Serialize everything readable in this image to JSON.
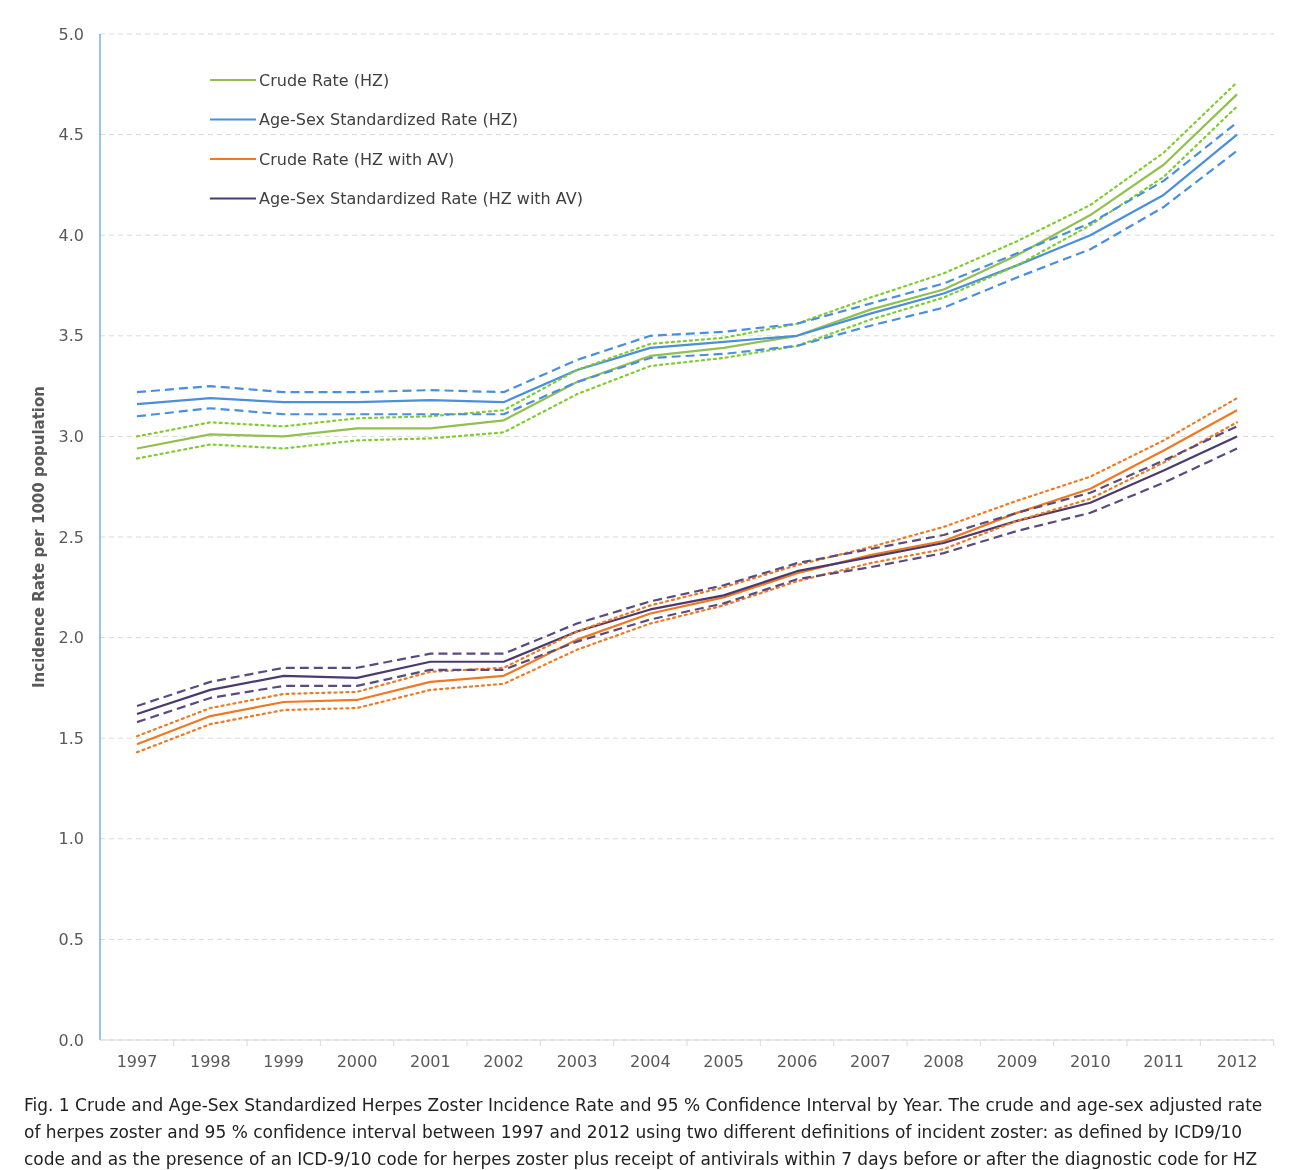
{
  "chart_data": {
    "type": "line",
    "ylabel": "Incidence Rate per 1000 population",
    "categories": [
      "1997",
      "1998",
      "1999",
      "2000",
      "2001",
      "2002",
      "2003",
      "2004",
      "2005",
      "2006",
      "2007",
      "2008",
      "2009",
      "2010",
      "2011",
      "2012"
    ],
    "ylim": [
      0,
      5
    ],
    "yticks": [
      {
        "value": 0,
        "label": "0.0"
      },
      {
        "value": 0.5,
        "label": "0.5"
      },
      {
        "value": 1,
        "label": "1.0"
      },
      {
        "value": 1.5,
        "label": "1.5"
      },
      {
        "value": 2,
        "label": "2.0"
      },
      {
        "value": 2.5,
        "label": "2.5"
      },
      {
        "value": 3,
        "label": "3.0"
      },
      {
        "value": 3.5,
        "label": "3.5"
      },
      {
        "value": 4,
        "label": "4.0"
      },
      {
        "value": 4.5,
        "label": "4.5"
      },
      {
        "value": 5,
        "label": "5.0"
      }
    ],
    "grid": "y",
    "legend": "top left",
    "series": [
      {
        "name": "Crude Rate (HZ)",
        "color": "#92c050",
        "line_style": "solid",
        "values": [
          2.94,
          3.01,
          3.0,
          3.04,
          3.04,
          3.08,
          3.27,
          3.4,
          3.44,
          3.5,
          3.63,
          3.73,
          3.9,
          4.1,
          4.35,
          4.7
        ]
      },
      {
        "name": "Age-Sex Standardized Rate (HZ)",
        "color": "#4a8fdc",
        "line_style": "solid",
        "values": [
          3.16,
          3.19,
          3.17,
          3.17,
          3.18,
          3.17,
          3.33,
          3.44,
          3.47,
          3.5,
          3.61,
          3.71,
          3.85,
          4.0,
          4.2,
          4.5
        ]
      },
      {
        "name": "Crude Rate (HZ with AV)",
        "color": "#f07820",
        "line_style": "solid",
        "values": [
          1.47,
          1.61,
          1.68,
          1.69,
          1.78,
          1.81,
          1.99,
          2.12,
          2.2,
          2.32,
          2.41,
          2.48,
          2.62,
          2.74,
          2.93,
          3.13
        ]
      },
      {
        "name": "Age-Sex Standardized Rate (HZ with AV)",
        "color": "#4b3a6e",
        "line_style": "solid",
        "values": [
          1.62,
          1.74,
          1.81,
          1.8,
          1.88,
          1.88,
          2.03,
          2.14,
          2.21,
          2.33,
          2.4,
          2.47,
          2.58,
          2.67,
          2.83,
          3.0
        ]
      },
      {
        "color": "#80cc30",
        "line_style": "dotted",
        "values": [
          2.89,
          2.96,
          2.94,
          2.98,
          2.99,
          3.02,
          3.21,
          3.35,
          3.39,
          3.45,
          3.58,
          3.69,
          3.85,
          4.05,
          4.29,
          4.64
        ]
      },
      {
        "color": "#80cc30",
        "line_style": "dotted",
        "values": [
          3.0,
          3.07,
          3.05,
          3.09,
          3.1,
          3.13,
          3.33,
          3.46,
          3.49,
          3.56,
          3.69,
          3.81,
          3.97,
          4.15,
          4.41,
          4.76
        ]
      },
      {
        "color": "#4a8fdc",
        "line_style": "dashed",
        "values": [
          3.1,
          3.14,
          3.11,
          3.11,
          3.11,
          3.11,
          3.27,
          3.39,
          3.41,
          3.45,
          3.55,
          3.64,
          3.79,
          3.93,
          4.14,
          4.42
        ]
      },
      {
        "color": "#4a8fdc",
        "line_style": "dashed",
        "values": [
          3.22,
          3.25,
          3.22,
          3.22,
          3.23,
          3.22,
          3.38,
          3.5,
          3.52,
          3.56,
          3.66,
          3.76,
          3.91,
          4.06,
          4.27,
          4.56
        ]
      },
      {
        "color": "#f07820",
        "line_style": "dotted",
        "values": [
          1.43,
          1.57,
          1.64,
          1.65,
          1.74,
          1.77,
          1.94,
          2.07,
          2.16,
          2.28,
          2.37,
          2.44,
          2.58,
          2.69,
          2.87,
          3.07
        ]
      },
      {
        "color": "#f07820",
        "line_style": "dotted",
        "values": [
          1.51,
          1.65,
          1.72,
          1.73,
          1.83,
          1.85,
          2.03,
          2.16,
          2.25,
          2.36,
          2.45,
          2.55,
          2.68,
          2.8,
          2.98,
          3.19
        ]
      },
      {
        "color": "#5a4a80",
        "line_style": "dashed",
        "values": [
          1.58,
          1.7,
          1.76,
          1.76,
          1.84,
          1.84,
          1.98,
          2.09,
          2.17,
          2.29,
          2.35,
          2.42,
          2.53,
          2.62,
          2.77,
          2.94
        ]
      },
      {
        "color": "#5a4a80",
        "line_style": "dashed",
        "values": [
          1.66,
          1.78,
          1.85,
          1.85,
          1.92,
          1.92,
          2.07,
          2.18,
          2.26,
          2.37,
          2.44,
          2.51,
          2.62,
          2.72,
          2.88,
          3.05
        ]
      }
    ],
    "annotations": [
      "Fig. 1 Crude and Age-Sex Standardized Herpes Zoster Incidence Rate and 95 % Confidence Interval by Year. The crude and age-sex adjusted rate of herpes zoster and 95 % confidence interval between 1997 and 2012 using two different definitions of incident zoster: as defined by ICD9/10 code and as the presence of an ICD-9/10 code for herpes zoster plus receipt of antivirals within 7 days before or after the diagnostic code for HZ"
    ]
  }
}
